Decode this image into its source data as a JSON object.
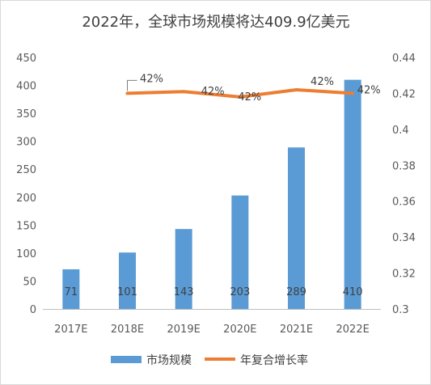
{
  "chart_data": {
    "type": "bar",
    "title": "2022年，全球市场规模将达409.9亿美元",
    "categories": [
      "2017E",
      "2018E",
      "2019E",
      "2020E",
      "2021E",
      "2022E"
    ],
    "series": [
      {
        "name": "市场规模",
        "type": "bar",
        "axis": "left",
        "color": "#5b9bd5",
        "values": [
          71,
          101,
          143,
          203,
          289,
          410
        ],
        "labels": [
          "71",
          "101",
          "143",
          "203",
          "289",
          "410"
        ]
      },
      {
        "name": "年复合增长率",
        "type": "line",
        "axis": "right",
        "color": "#ed7d31",
        "values": [
          null,
          0.42,
          0.421,
          0.418,
          0.422,
          0.42
        ],
        "labels": [
          "",
          "42%",
          "42%",
          "42%",
          "42%",
          "42%"
        ]
      }
    ],
    "y_left": {
      "min": 0,
      "max": 450,
      "step": 50,
      "ticks": [
        "0",
        "50",
        "100",
        "150",
        "200",
        "250",
        "300",
        "350",
        "400",
        "450"
      ]
    },
    "y_right": {
      "min": 0.3,
      "max": 0.44,
      "step": 0.02,
      "ticks": [
        "0.3",
        "0.32",
        "0.34",
        "0.36",
        "0.38",
        "0.4",
        "0.42",
        "0.44"
      ]
    },
    "grid": false,
    "legend_position": "bottom"
  }
}
